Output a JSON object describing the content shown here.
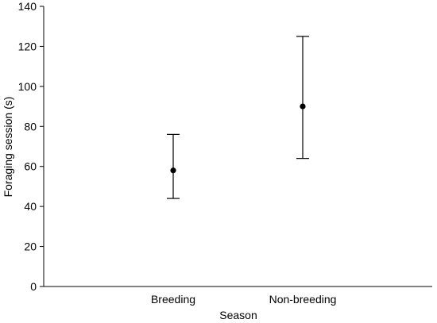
{
  "chart_data": {
    "type": "scatter",
    "title": "",
    "xlabel": "Season",
    "ylabel": "Foraging session (s)",
    "categories": [
      "Breeding",
      "Non-breeding"
    ],
    "series": [
      {
        "values": [
          58,
          90
        ],
        "error_low": [
          44,
          64
        ],
        "error_high": [
          76,
          125
        ]
      }
    ],
    "ylim": [
      0,
      140
    ],
    "yticks": [
      0,
      20,
      40,
      60,
      80,
      100,
      120,
      140
    ],
    "grid": false,
    "legend": "none",
    "colors": {
      "marker": "#000000",
      "axis": "#000000"
    }
  }
}
